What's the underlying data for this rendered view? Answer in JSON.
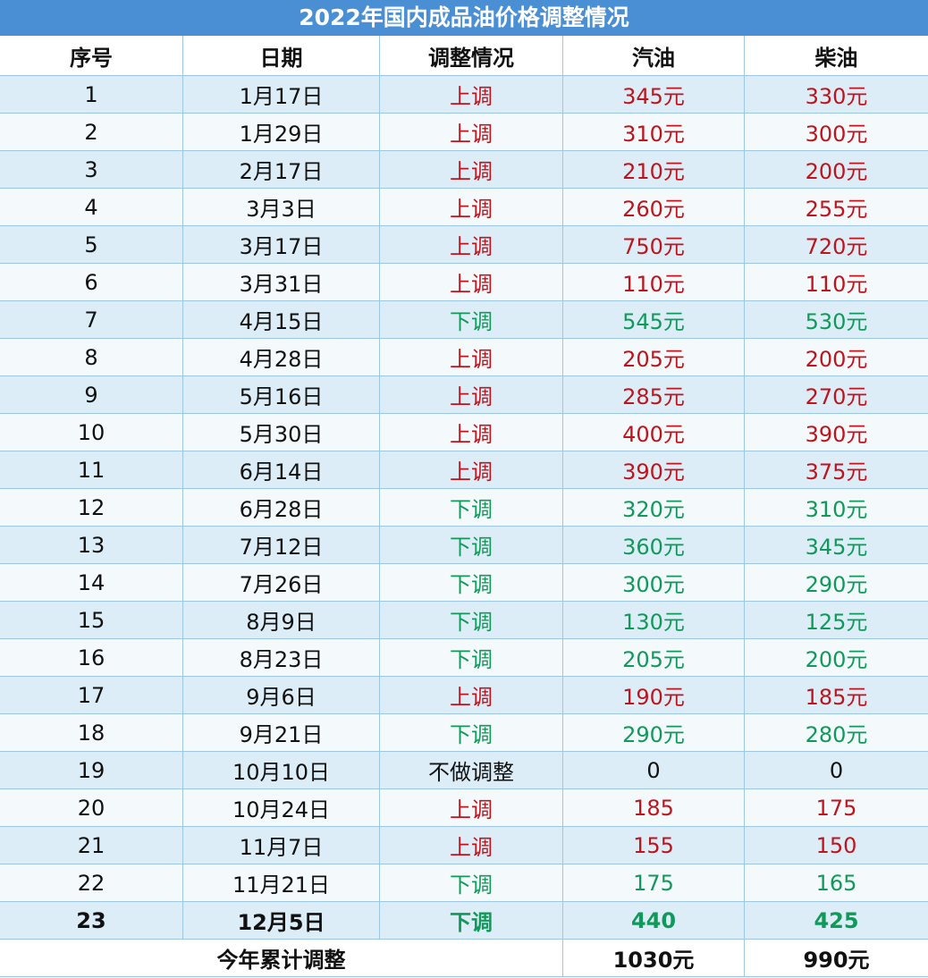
{
  "title": "2022年国内成品油价格调整情况",
  "header": [
    "序号",
    "日期",
    "调整情况",
    "汽油",
    "柴油"
  ],
  "rows": [
    {
      "cells": [
        "1",
        "1月17日",
        "上调",
        "345元",
        "330元"
      ],
      "color": "#c0141c"
    },
    {
      "cells": [
        "2",
        "1月29日",
        "上调",
        "310元",
        "300元"
      ],
      "color": "#c0141c"
    },
    {
      "cells": [
        "3",
        "2月17日",
        "上调",
        "210元",
        "200元"
      ],
      "color": "#c0141c"
    },
    {
      "cells": [
        "4",
        "3月3日",
        "上调",
        "260元",
        "255元"
      ],
      "color": "#c0141c"
    },
    {
      "cells": [
        "5",
        "3月17日",
        "上调",
        "750元",
        "720元"
      ],
      "color": "#c0141c"
    },
    {
      "cells": [
        "6",
        "3月31日",
        "上调",
        "110元",
        "110元"
      ],
      "color": "#c0141c"
    },
    {
      "cells": [
        "7",
        "4月15日",
        "下调",
        "545元",
        "530元"
      ],
      "color": "#0f9a5a"
    },
    {
      "cells": [
        "8",
        "4月28日",
        "上调",
        "205元",
        "200元"
      ],
      "color": "#c0141c"
    },
    {
      "cells": [
        "9",
        "5月16日",
        "上调",
        "285元",
        "270元"
      ],
      "color": "#c0141c"
    },
    {
      "cells": [
        "10",
        "5月30日",
        "上调",
        "400元",
        "390元"
      ],
      "color": "#c0141c"
    },
    {
      "cells": [
        "11",
        "6月14日",
        "上调",
        "390元",
        "375元"
      ],
      "color": "#c0141c"
    },
    {
      "cells": [
        "12",
        "6月28日",
        "下调",
        "320元",
        "310元"
      ],
      "color": "#0f9a5a"
    },
    {
      "cells": [
        "13",
        "7月12日",
        "下调",
        "360元",
        "345元"
      ],
      "color": "#0f9a5a"
    },
    {
      "cells": [
        "14",
        "7月26日",
        "下调",
        "300元",
        "290元"
      ],
      "color": "#0f9a5a"
    },
    {
      "cells": [
        "15",
        "8月9日",
        "下调",
        "130元",
        "125元"
      ],
      "color": "#0f9a5a"
    },
    {
      "cells": [
        "16",
        "8月23日",
        "下调",
        "205元",
        "200元"
      ],
      "color": "#0f9a5a"
    },
    {
      "cells": [
        "17",
        "9月6日",
        "上调",
        "190元",
        "185元"
      ],
      "color": "#c0141c"
    },
    {
      "cells": [
        "18",
        "9月21日",
        "下调",
        "290元",
        "280元"
      ],
      "color": "#0f9a5a"
    },
    {
      "cells": [
        "19",
        "10月10日",
        "不做调整",
        "0",
        "0"
      ],
      "color": "#111111"
    },
    {
      "cells": [
        "20",
        "10月24日",
        "上调",
        "185",
        "175"
      ],
      "color": "#c0141c"
    },
    {
      "cells": [
        "21",
        "11月7日",
        "上调",
        "155",
        "150"
      ],
      "color": "#c0141c"
    },
    {
      "cells": [
        "22",
        "11月21日",
        "下调",
        "175",
        "165"
      ],
      "color": "#0f9a5a"
    },
    {
      "cells": [
        "23",
        "12月5日",
        "下调",
        "440",
        "425"
      ],
      "color": "#0f9a5a",
      "bold": true
    }
  ],
  "footer": [
    "今年累计调整",
    "1030元",
    "990元"
  ]
}
